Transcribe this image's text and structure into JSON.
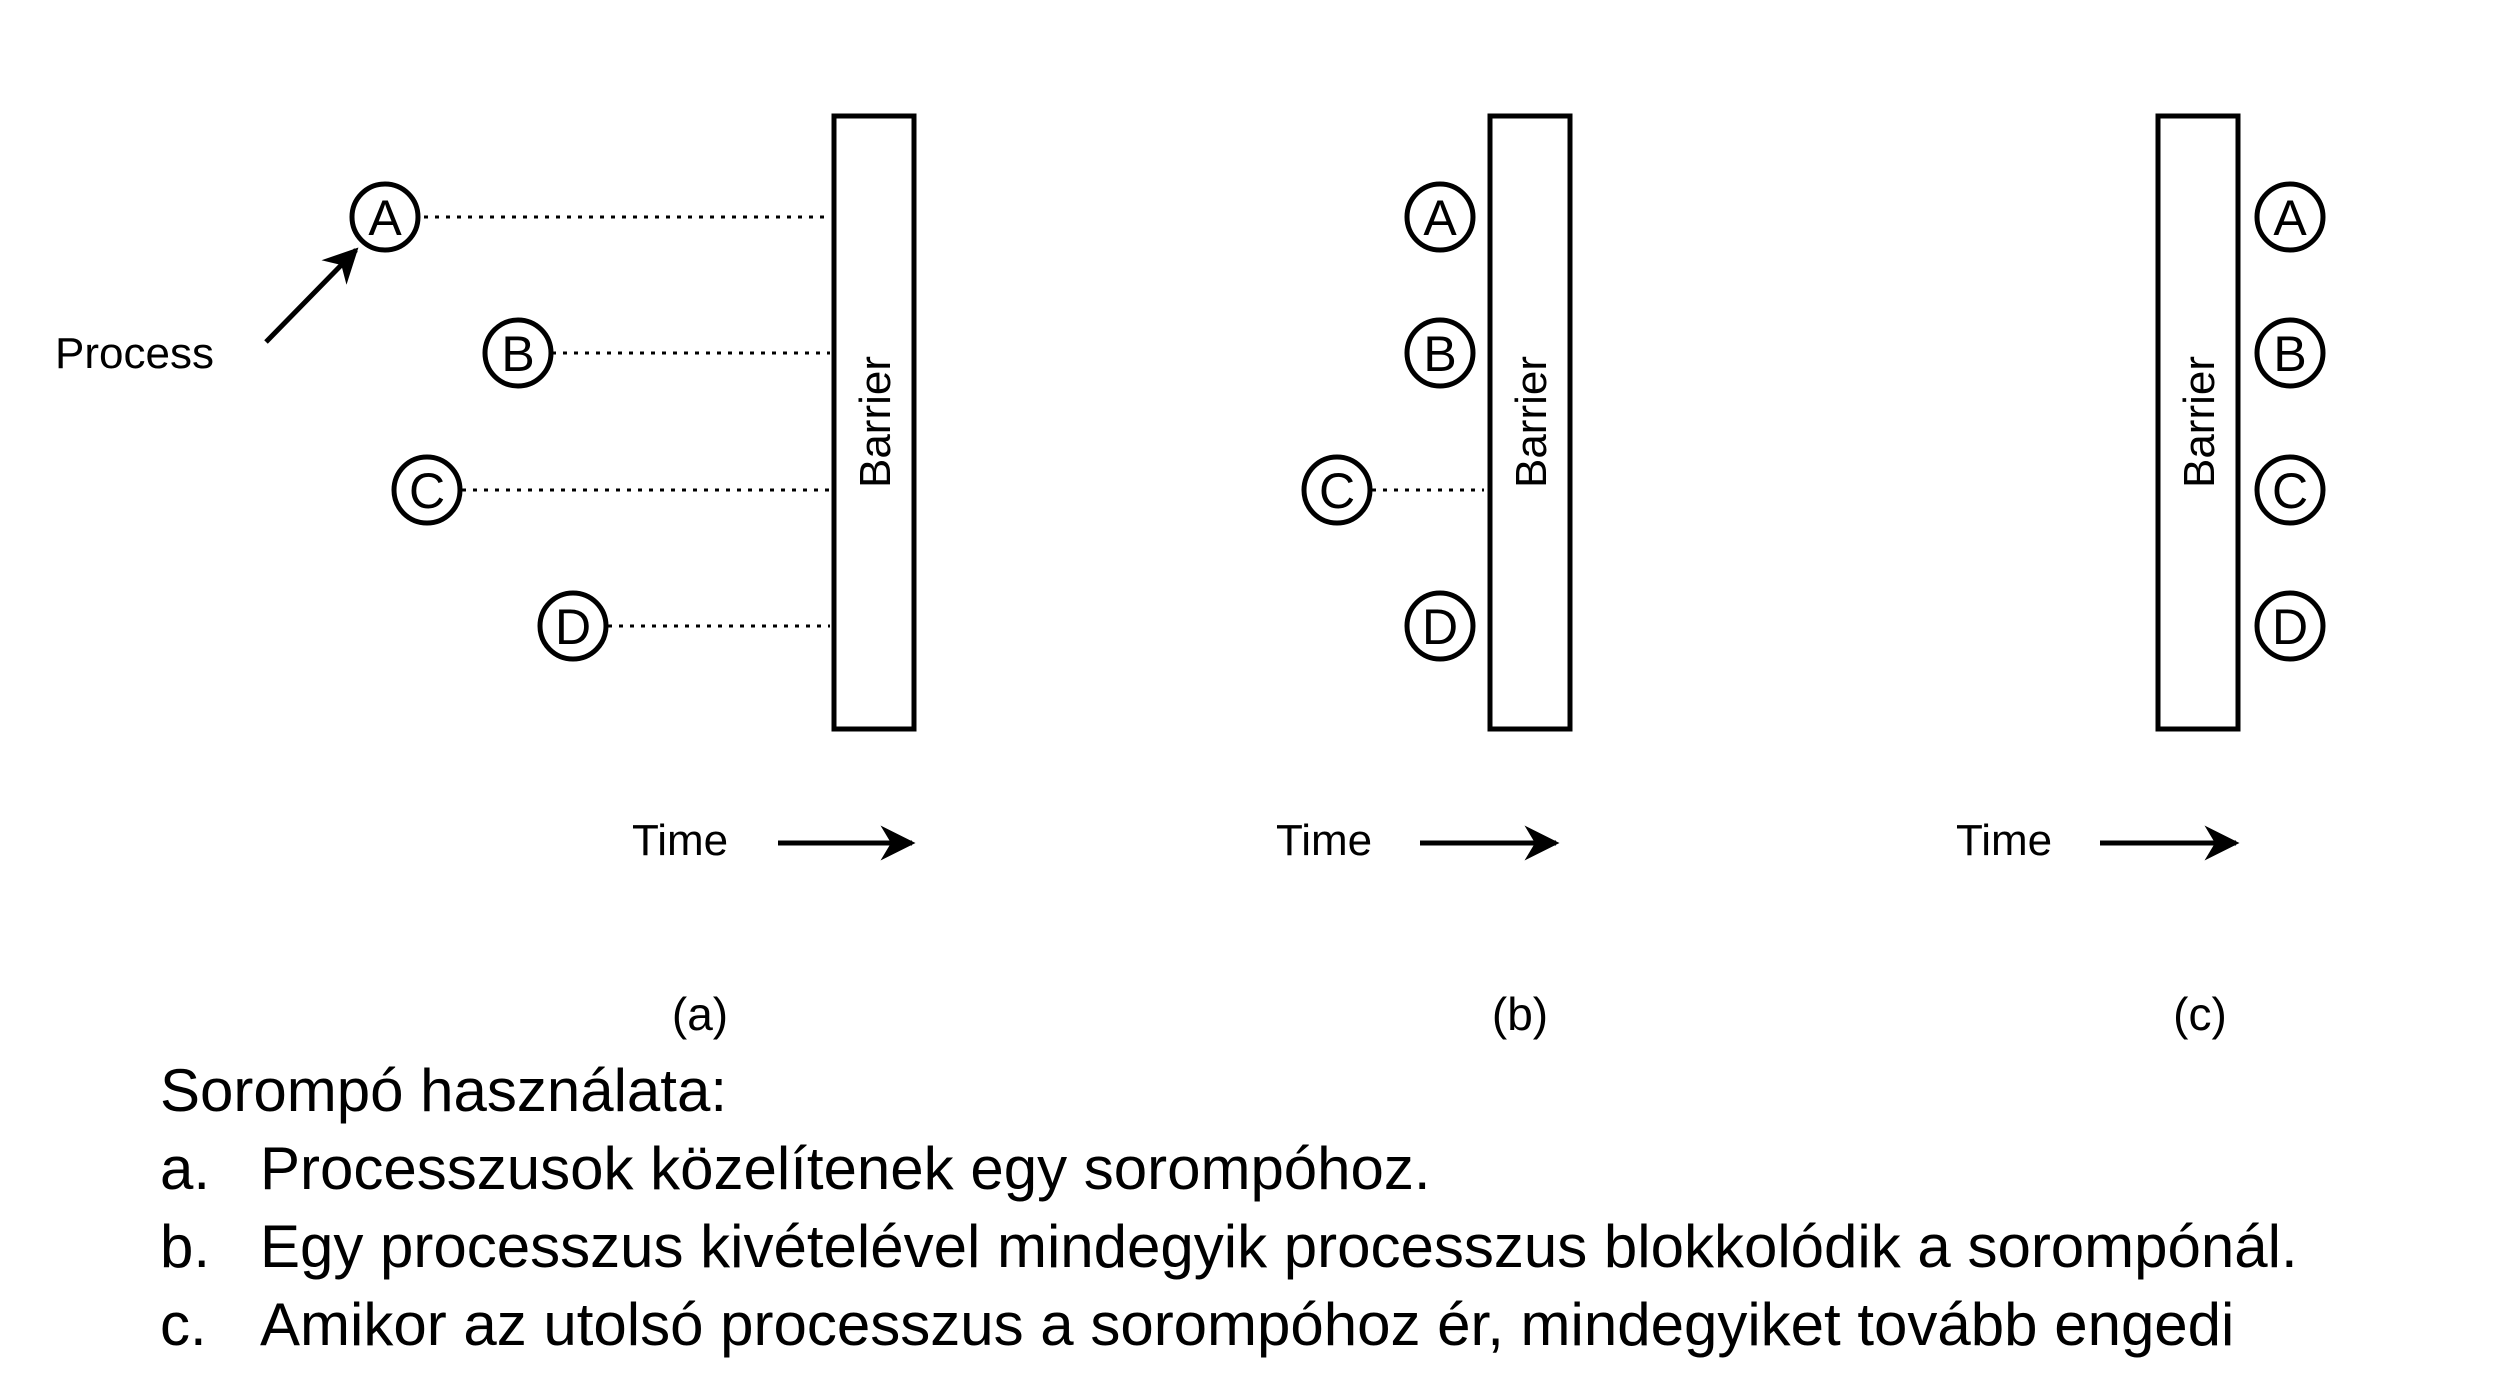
{
  "panels": [
    {
      "caption": "(a)",
      "barrier_label": "Barrier",
      "time_label": "Time",
      "pointer_label": "Process",
      "processes": [
        {
          "label": "A",
          "state": "approaching"
        },
        {
          "label": "B",
          "state": "approaching"
        },
        {
          "label": "C",
          "state": "approaching"
        },
        {
          "label": "D",
          "state": "approaching"
        }
      ]
    },
    {
      "caption": "(b)",
      "barrier_label": "Barrier",
      "time_label": "Time",
      "processes": [
        {
          "label": "A",
          "state": "blocked"
        },
        {
          "label": "B",
          "state": "blocked"
        },
        {
          "label": "C",
          "state": "approaching"
        },
        {
          "label": "D",
          "state": "blocked"
        }
      ]
    },
    {
      "caption": "(c)",
      "barrier_label": "Barrier",
      "time_label": "Time",
      "processes": [
        {
          "label": "A",
          "state": "passed"
        },
        {
          "label": "B",
          "state": "passed"
        },
        {
          "label": "C",
          "state": "passed"
        },
        {
          "label": "D",
          "state": "passed"
        }
      ]
    }
  ],
  "description": {
    "title": "Sorompó használata:",
    "items": [
      {
        "letter": "a.",
        "text": "Processzusok közelítenek egy sorompóhoz."
      },
      {
        "letter": "b.",
        "text": "Egy processzus kivételével mindegyik processzus blokkolódik a sorompónál."
      },
      {
        "letter": "c.",
        "text": "Amikor az utolsó processzus a sorompóhoz ér, mindegyiket tovább engedi"
      }
    ]
  }
}
